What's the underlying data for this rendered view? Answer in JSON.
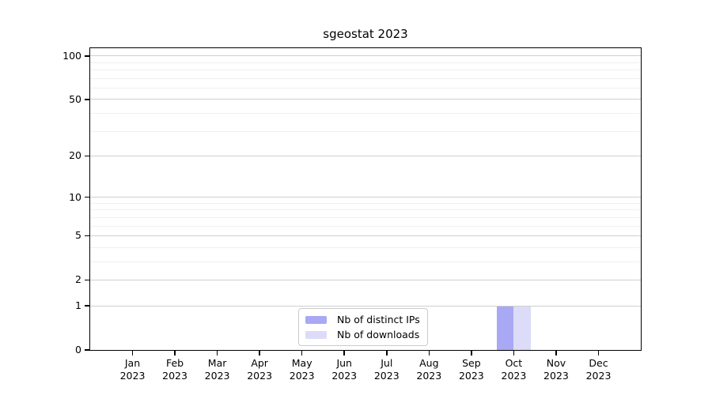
{
  "chart_data": {
    "type": "bar",
    "title": "sgeostat 2023",
    "x_tick_months": [
      "Jan",
      "Feb",
      "Mar",
      "Apr",
      "May",
      "Jun",
      "Jul",
      "Aug",
      "Sep",
      "Oct",
      "Nov",
      "Dec"
    ],
    "x_tick_year": "2023",
    "series": [
      {
        "name": "Nb of distinct IPs",
        "color": "#a8a8f4",
        "values": [
          0,
          0,
          0,
          0,
          0,
          0,
          0,
          0,
          0,
          1,
          0,
          0
        ]
      },
      {
        "name": "Nb of downloads",
        "color": "#dcdcf8",
        "values": [
          0,
          0,
          0,
          0,
          0,
          0,
          0,
          0,
          0,
          1,
          0,
          0
        ]
      }
    ],
    "yscale": "log1p",
    "ylim": [
      0,
      113
    ],
    "yticks": [
      0,
      1,
      2,
      5,
      10,
      20,
      50,
      100
    ],
    "y_minor_gridlines": [
      3,
      4,
      6,
      7,
      8,
      9,
      30,
      40,
      60,
      70,
      80,
      90
    ],
    "grid": "horizontal",
    "legend_position": "inside-bottom-center",
    "colors": {
      "axis": "#000000",
      "major_gridline": "#cfcfcf",
      "minor_gridline": "#f0f0f0",
      "background": "#ffffff"
    }
  }
}
